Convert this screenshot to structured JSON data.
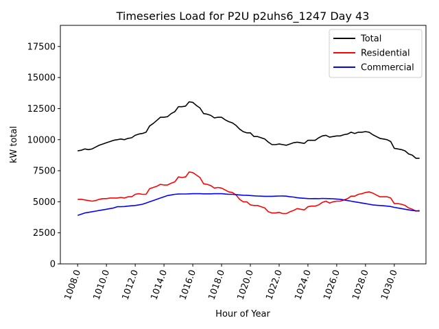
{
  "chart_data": {
    "type": "line",
    "title": "Timeseries Load for P2U p2uhs6_1247  Day 43",
    "xlabel": "Hour of Year",
    "ylabel": "kW total",
    "xlim": [
      1006.8,
      1032.2
    ],
    "ylim": [
      0,
      19200
    ],
    "x_ticks": [
      1008.0,
      1010.0,
      1012.0,
      1014.0,
      1016.0,
      1018.0,
      1020.0,
      1022.0,
      1024.0,
      1026.0,
      1028.0,
      1030.0
    ],
    "x_tick_labels": [
      "1008.0",
      "1010.0",
      "1012.0",
      "1014.0",
      "1016.0",
      "1018.0",
      "1020.0",
      "1022.0",
      "1024.0",
      "1026.0",
      "1028.0",
      "1030.0"
    ],
    "y_ticks": [
      0,
      2500,
      5000,
      7500,
      10000,
      12500,
      15000,
      17500
    ],
    "y_tick_labels": [
      "0",
      "2500",
      "5000",
      "7500",
      "10000",
      "12500",
      "15000",
      "17500"
    ],
    "legend_position": "top-right",
    "x": [
      1008.0,
      1008.25,
      1008.5,
      1008.75,
      1009.0,
      1009.25,
      1009.5,
      1009.75,
      1010.0,
      1010.25,
      1010.5,
      1010.75,
      1011.0,
      1011.25,
      1011.5,
      1011.75,
      1012.0,
      1012.25,
      1012.5,
      1012.75,
      1013.0,
      1013.25,
      1013.5,
      1013.75,
      1014.0,
      1014.25,
      1014.5,
      1014.75,
      1015.0,
      1015.25,
      1015.5,
      1015.75,
      1016.0,
      1016.25,
      1016.5,
      1016.75,
      1017.0,
      1017.25,
      1017.5,
      1017.75,
      1018.0,
      1018.25,
      1018.5,
      1018.75,
      1019.0,
      1019.25,
      1019.5,
      1019.75,
      1020.0,
      1020.25,
      1020.5,
      1020.75,
      1021.0,
      1021.25,
      1021.5,
      1021.75,
      1022.0,
      1022.25,
      1022.5,
      1022.75,
      1023.0,
      1023.25,
      1023.5,
      1023.75,
      1024.0,
      1024.25,
      1024.5,
      1024.75,
      1025.0,
      1025.25,
      1025.5,
      1025.75,
      1026.0,
      1026.25,
      1026.5,
      1026.75,
      1027.0,
      1027.25,
      1027.5,
      1027.75,
      1028.0,
      1028.25,
      1028.5,
      1028.75,
      1029.0,
      1029.25,
      1029.5,
      1029.75,
      1030.0,
      1030.25,
      1030.5,
      1030.75,
      1031.0,
      1031.25,
      1031.5,
      1031.75
    ],
    "series": [
      {
        "name": "Total",
        "color": "#000000",
        "values": [
          9100,
          9150,
          9250,
          9200,
          9250,
          9400,
          9550,
          9650,
          9750,
          9850,
          9950,
          10000,
          10050,
          10000,
          10100,
          10150,
          10350,
          10450,
          10500,
          10600,
          11100,
          11300,
          11550,
          11800,
          11800,
          11850,
          12100,
          12250,
          12650,
          12650,
          12700,
          13050,
          13000,
          12750,
          12550,
          12100,
          12050,
          11950,
          11750,
          11800,
          11800,
          11600,
          11450,
          11350,
          11150,
          10850,
          10650,
          10550,
          10550,
          10250,
          10250,
          10150,
          10050,
          9800,
          9600,
          9600,
          9650,
          9600,
          9550,
          9650,
          9750,
          9800,
          9750,
          9700,
          9950,
          9950,
          9950,
          10150,
          10300,
          10350,
          10200,
          10250,
          10300,
          10300,
          10400,
          10450,
          10600,
          10500,
          10600,
          10600,
          10650,
          10600,
          10400,
          10250,
          10100,
          10050,
          10000,
          9850,
          9300,
          9250,
          9200,
          9100,
          8850,
          8750,
          8500,
          8500
        ]
      },
      {
        "name": "Residential",
        "color": "#ff0000",
        "values": [
          5200,
          5200,
          5150,
          5100,
          5050,
          5100,
          5200,
          5250,
          5250,
          5300,
          5300,
          5300,
          5350,
          5300,
          5400,
          5400,
          5600,
          5650,
          5600,
          5600,
          6050,
          6150,
          6250,
          6400,
          6350,
          6350,
          6500,
          6600,
          7000,
          6950,
          7000,
          7400,
          7350,
          7150,
          6950,
          6450,
          6400,
          6300,
          6100,
          6150,
          6100,
          5950,
          5800,
          5750,
          5550,
          5200,
          5000,
          5000,
          4750,
          4700,
          4700,
          4600,
          4500,
          4200,
          4100,
          4100,
          4150,
          4050,
          4050,
          4200,
          4300,
          4450,
          4400,
          4350,
          4600,
          4650,
          4650,
          4750,
          4950,
          5050,
          4900,
          5000,
          5050,
          5050,
          5150,
          5250,
          5450,
          5450,
          5600,
          5650,
          5750,
          5800,
          5700,
          5550,
          5400,
          5400,
          5400,
          5300,
          4850,
          4850,
          4800,
          4700,
          4500,
          4400,
          4250,
          4300
        ]
      },
      {
        "name": "Commercial",
        "color": "#0000ff",
        "values": [
          3900,
          4000,
          4100,
          4150,
          4200,
          4250,
          4300,
          4350,
          4400,
          4450,
          4500,
          4600,
          4600,
          4620,
          4650,
          4680,
          4700,
          4750,
          4800,
          4900,
          5000,
          5100,
          5200,
          5300,
          5400,
          5500,
          5550,
          5600,
          5620,
          5630,
          5630,
          5640,
          5650,
          5650,
          5650,
          5640,
          5640,
          5640,
          5650,
          5650,
          5650,
          5620,
          5600,
          5600,
          5580,
          5550,
          5530,
          5520,
          5500,
          5480,
          5460,
          5450,
          5440,
          5440,
          5440,
          5450,
          5460,
          5470,
          5450,
          5400,
          5380,
          5330,
          5300,
          5280,
          5260,
          5250,
          5260,
          5250,
          5270,
          5260,
          5250,
          5240,
          5220,
          5200,
          5150,
          5100,
          5050,
          5000,
          4950,
          4900,
          4850,
          4800,
          4750,
          4720,
          4700,
          4680,
          4650,
          4620,
          4550,
          4500,
          4450,
          4400,
          4350,
          4300,
          4270,
          4250
        ]
      }
    ]
  }
}
